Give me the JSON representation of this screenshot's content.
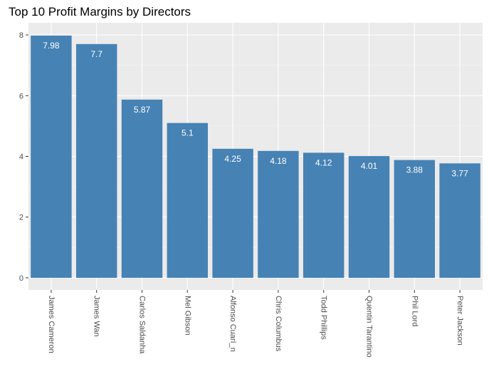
{
  "chart_data": {
    "type": "bar",
    "title": "Top 10 Profit Margins by Directors",
    "xlabel": "",
    "ylabel": "",
    "categories": [
      "James Cameron",
      "James Wan",
      "Carlos Saldanha",
      "Mel Gibson",
      "Alfonso Cuarí_n",
      "Chris Columbus",
      "Todd Phillips",
      "Quentin Tarantino",
      "Phil Lord",
      "Peter Jackson"
    ],
    "values": [
      7.98,
      7.7,
      5.87,
      5.1,
      4.25,
      4.18,
      4.12,
      4.01,
      3.88,
      3.77
    ],
    "data_labels": [
      "7.98",
      "7.7",
      "5.87",
      "5.1",
      "4.25",
      "4.18",
      "4.12",
      "4.01",
      "3.88",
      "3.77"
    ],
    "ylim": [
      -0.4,
      8.4
    ],
    "yticks": [
      0,
      2,
      4,
      6,
      8
    ],
    "grid": true,
    "legend": "none",
    "colors": {
      "bar": "#4682b4",
      "panel": "#ebebeb",
      "grid_major": "#ffffff",
      "grid_minor": "#f5f5f5"
    }
  }
}
